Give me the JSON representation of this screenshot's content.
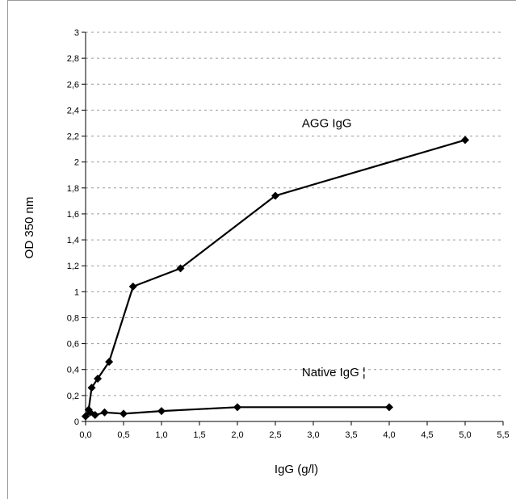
{
  "chart_data": {
    "type": "line",
    "title": "",
    "xlabel": "IgG (g/l)",
    "ylabel": "OD 350 nm",
    "xlim": [
      0,
      5.5
    ],
    "ylim": [
      0,
      3
    ],
    "x_ticks": [
      "0,0",
      "0,5",
      "1,0",
      "1,5",
      "2,0",
      "2,5",
      "3,0",
      "3,5",
      "4,0",
      "4,5",
      "5,0",
      "5,5"
    ],
    "y_ticks": [
      "0",
      "0,2",
      "0,4",
      "0,6",
      "0,8",
      "1",
      "1,2",
      "1,4",
      "1,6",
      "1,8",
      "2",
      "2,2",
      "2,4",
      "2,6",
      "2,8",
      "3"
    ],
    "grid": "horizontal dashed",
    "legend": "none",
    "series": [
      {
        "name": "AGG IgG",
        "marker": "diamond",
        "color": "#000000",
        "x": [
          0.0,
          0.04,
          0.08,
          0.16,
          0.31,
          0.625,
          1.25,
          2.5,
          5.0
        ],
        "y": [
          0.04,
          0.09,
          0.26,
          0.33,
          0.46,
          1.04,
          1.18,
          1.74,
          2.17
        ]
      },
      {
        "name": "Native IgG",
        "marker": "diamond",
        "color": "#000000",
        "x": [
          0.0,
          0.06,
          0.125,
          0.25,
          0.5,
          1.0,
          2.0,
          4.0
        ],
        "y": [
          0.04,
          0.07,
          0.05,
          0.07,
          0.06,
          0.08,
          0.11,
          0.11
        ]
      }
    ],
    "annotations": [
      {
        "text": "AGG IgG",
        "x": 2.85,
        "y": 2.27
      },
      {
        "text": "Native IgG ¦",
        "x": 2.85,
        "y": 0.35
      }
    ]
  }
}
